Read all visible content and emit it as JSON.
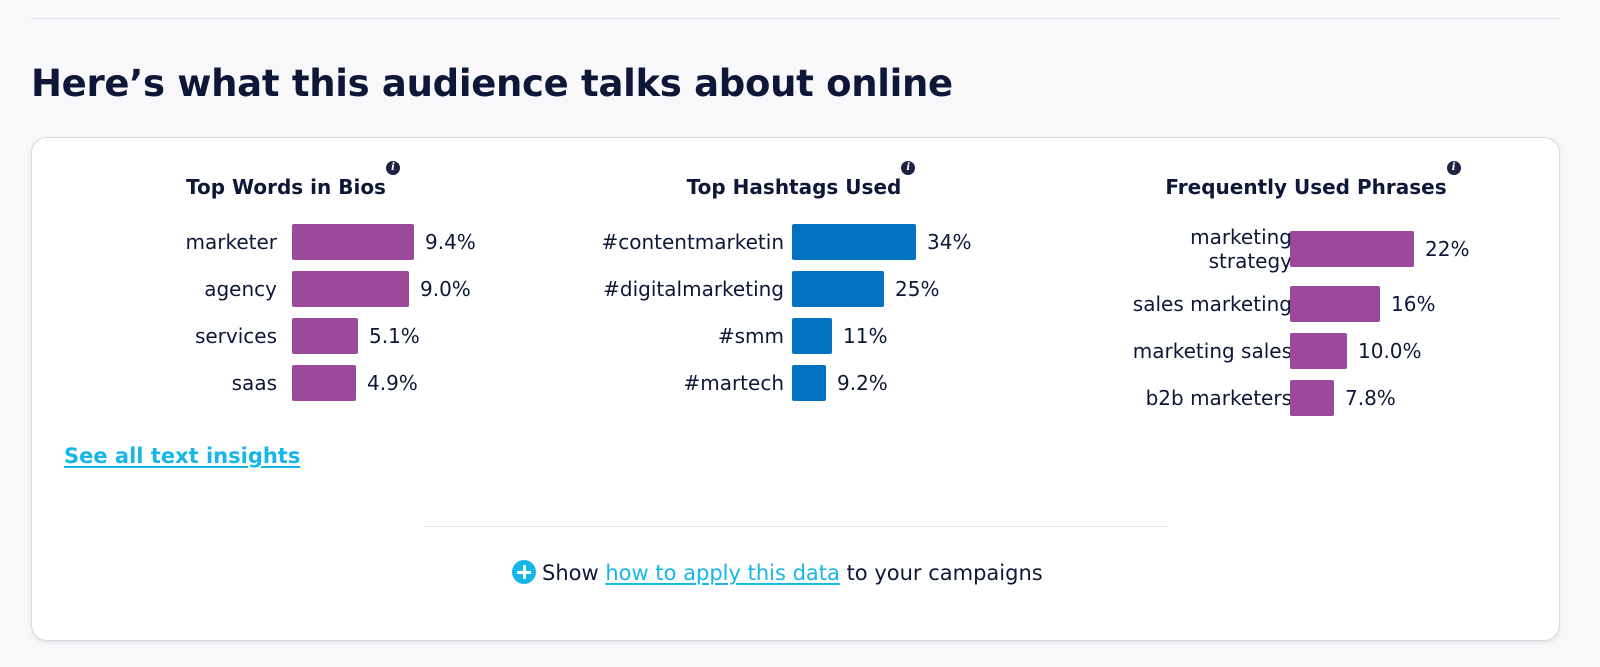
{
  "headline": "Here’s what this audience talks about online",
  "colors": {
    "purple": "#9b4a9b",
    "blue": "#0072c0",
    "link": "#17b6e8",
    "text": "#0f1738"
  },
  "panels": [
    {
      "title": "Top Words in Bios",
      "info_icon": "info-icon",
      "bar_color": "#9b4a9b",
      "items": [
        {
          "label": "marketer",
          "value": "9.4%",
          "pct": 9.4
        },
        {
          "label": "agency",
          "value": "9.0%",
          "pct": 9.0
        },
        {
          "label": "services",
          "value": "5.1%",
          "pct": 5.1
        },
        {
          "label": "saas",
          "value": "4.9%",
          "pct": 4.9
        }
      ]
    },
    {
      "title": "Top Hashtags Used",
      "info_icon": "info-icon",
      "bar_color": "#0072c0",
      "items": [
        {
          "label": "#contentmarketin",
          "value": "34%",
          "pct": 34
        },
        {
          "label": "#digitalmarketing",
          "value": "25%",
          "pct": 25
        },
        {
          "label": "#smm",
          "value": "11%",
          "pct": 11
        },
        {
          "label": "#martech",
          "value": "9.2%",
          "pct": 9.2
        }
      ]
    },
    {
      "title": "Frequently Used Phrases",
      "info_icon": "info-icon",
      "bar_color": "#9b4a9b",
      "items": [
        {
          "label": "marketing strategy",
          "value": "22%",
          "pct": 22
        },
        {
          "label": "sales marketing",
          "value": "16%",
          "pct": 16
        },
        {
          "label": "marketing sales",
          "value": "10.0%",
          "pct": 10.0
        },
        {
          "label": "b2b marketers",
          "value": "7.8%",
          "pct": 7.8
        }
      ]
    }
  ],
  "see_all_link": "See all text insights",
  "apply": {
    "prefix": "Show",
    "link": "how to apply this data",
    "suffix": "to your campaigns",
    "icon": "plus-circle-icon"
  }
}
